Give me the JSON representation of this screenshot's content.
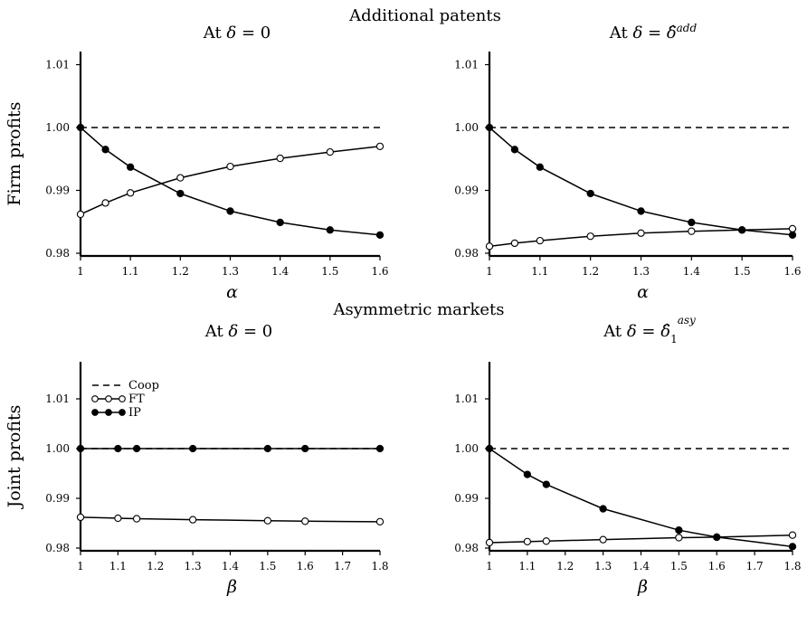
{
  "figure": {
    "sections": [
      "Additional patents",
      "Asymmetric markets"
    ]
  },
  "legend": [
    {
      "label": "Coop",
      "style": "dashed"
    },
    {
      "label": "FT",
      "style": "open-circle"
    },
    {
      "label": "IP",
      "style": "filled-circle"
    }
  ],
  "chart_data": [
    {
      "type": "line",
      "title_html": "At <tspan font-style='italic'>δ</tspan> = 0",
      "title_plain": "At δ = 0",
      "xlabel": "α",
      "ylabel": "Firm profits",
      "xlim": [
        1,
        1.6
      ],
      "ylim": [
        0.98,
        1.012
      ],
      "xticks": [
        "1",
        "1.1",
        "1.2",
        "1.3",
        "1.4",
        "1.5",
        "1.6"
      ],
      "yticks": [
        "0.98",
        "0.99",
        "1.00",
        "1.01"
      ],
      "series": [
        {
          "name": "Coop",
          "style": "dashed",
          "x": [
            1,
            1.6
          ],
          "y": [
            1.0,
            1.0
          ]
        },
        {
          "name": "FT",
          "style": "open-circle",
          "x": [
            1,
            1.05,
            1.1,
            1.2,
            1.3,
            1.4,
            1.5,
            1.6
          ],
          "y": [
            0.9862,
            0.988,
            0.9896,
            0.992,
            0.9938,
            0.9951,
            0.9961,
            0.997
          ]
        },
        {
          "name": "IP",
          "style": "filled-circle",
          "x": [
            1,
            1.05,
            1.1,
            1.2,
            1.3,
            1.4,
            1.5,
            1.6
          ],
          "y": [
            1.0,
            0.9965,
            0.9937,
            0.9895,
            0.9867,
            0.9849,
            0.9837,
            0.9829
          ]
        }
      ]
    },
    {
      "type": "line",
      "title_html": "At <tspan font-style='italic'>δ</tspan> = <tspan font-style='italic'>δ̂</tspan><tspan baseline-shift='super' font-size='12' font-style='italic'>add</tspan>",
      "title_plain": "At δ = δ̂add",
      "xlabel": "α",
      "ylabel": "",
      "xlim": [
        1,
        1.6
      ],
      "ylim": [
        0.98,
        1.012
      ],
      "xticks": [
        "1",
        "1.1",
        "1.2",
        "1.3",
        "1.4",
        "1.5",
        "1.6"
      ],
      "yticks": [
        "0.98",
        "0.99",
        "1.00",
        "1.01"
      ],
      "series": [
        {
          "name": "Coop",
          "style": "dashed",
          "x": [
            1,
            1.6
          ],
          "y": [
            1.0,
            1.0
          ]
        },
        {
          "name": "FT",
          "style": "open-circle",
          "x": [
            1,
            1.05,
            1.1,
            1.2,
            1.3,
            1.4,
            1.5,
            1.6
          ],
          "y": [
            0.9811,
            0.9816,
            0.982,
            0.9827,
            0.9832,
            0.9835,
            0.9837,
            0.9839
          ]
        },
        {
          "name": "IP",
          "style": "filled-circle",
          "x": [
            1,
            1.05,
            1.1,
            1.2,
            1.3,
            1.4,
            1.5,
            1.6
          ],
          "y": [
            1.0,
            0.9965,
            0.9937,
            0.9895,
            0.9867,
            0.9849,
            0.9837,
            0.9829
          ]
        }
      ]
    },
    {
      "type": "line",
      "title_html": "At <tspan font-style='italic'>δ</tspan> = 0",
      "title_plain": "At δ = 0",
      "xlabel": "β",
      "ylabel": "Joint profits",
      "xlim": [
        1,
        1.8
      ],
      "ylim": [
        0.98,
        1.012
      ],
      "xticks": [
        "1",
        "1.1",
        "1.2",
        "1.3",
        "1.4",
        "1.5",
        "1.6",
        "1.7",
        "1.8"
      ],
      "yticks": [
        "0.98",
        "0.99",
        "1.00",
        "1.01"
      ],
      "legend_position": "top-left",
      "series": [
        {
          "name": "Coop",
          "style": "dashed",
          "x": [
            1,
            1.8
          ],
          "y": [
            1.0,
            1.0
          ]
        },
        {
          "name": "FT",
          "style": "open-circle",
          "x": [
            1,
            1.1,
            1.15,
            1.3,
            1.5,
            1.6,
            1.8
          ],
          "y": [
            0.9862,
            0.986,
            0.9859,
            0.9857,
            0.9855,
            0.9854,
            0.9853
          ]
        },
        {
          "name": "IP",
          "style": "filled-circle",
          "x": [
            1,
            1.1,
            1.15,
            1.3,
            1.5,
            1.6,
            1.8
          ],
          "y": [
            1.0,
            1.0,
            1.0,
            1.0,
            1.0,
            1.0,
            1.0
          ]
        }
      ]
    },
    {
      "type": "line",
      "title_html": "At <tspan font-style='italic'>δ</tspan> = <tspan font-style='italic'>δ̂</tspan><tspan baseline-shift='sub' font-size='12'>1</tspan><tspan dy='-14' font-size='12' font-style='italic'>asy</tspan>",
      "title_plain": "At δ = δ̂1asy",
      "xlabel": "β",
      "ylabel": "",
      "xlim": [
        1,
        1.8
      ],
      "ylim": [
        0.98,
        1.012
      ],
      "xticks": [
        "1",
        "1.1",
        "1.2",
        "1.3",
        "1.4",
        "1.5",
        "1.6",
        "1.7",
        "1.8"
      ],
      "yticks": [
        "0.98",
        "0.99",
        "1.00",
        "1.01"
      ],
      "series": [
        {
          "name": "Coop",
          "style": "dashed",
          "x": [
            1,
            1.8
          ],
          "y": [
            1.0,
            1.0
          ]
        },
        {
          "name": "FT",
          "style": "open-circle",
          "x": [
            1,
            1.1,
            1.15,
            1.3,
            1.5,
            1.6,
            1.8
          ],
          "y": [
            0.9811,
            0.9813,
            0.9814,
            0.9817,
            0.9821,
            0.9822,
            0.9826
          ]
        },
        {
          "name": "IP",
          "style": "filled-circle",
          "x": [
            1,
            1.1,
            1.15,
            1.3,
            1.5,
            1.6,
            1.8
          ],
          "y": [
            1.0,
            0.9948,
            0.9928,
            0.9879,
            0.9836,
            0.9822,
            0.9803
          ]
        }
      ]
    }
  ]
}
